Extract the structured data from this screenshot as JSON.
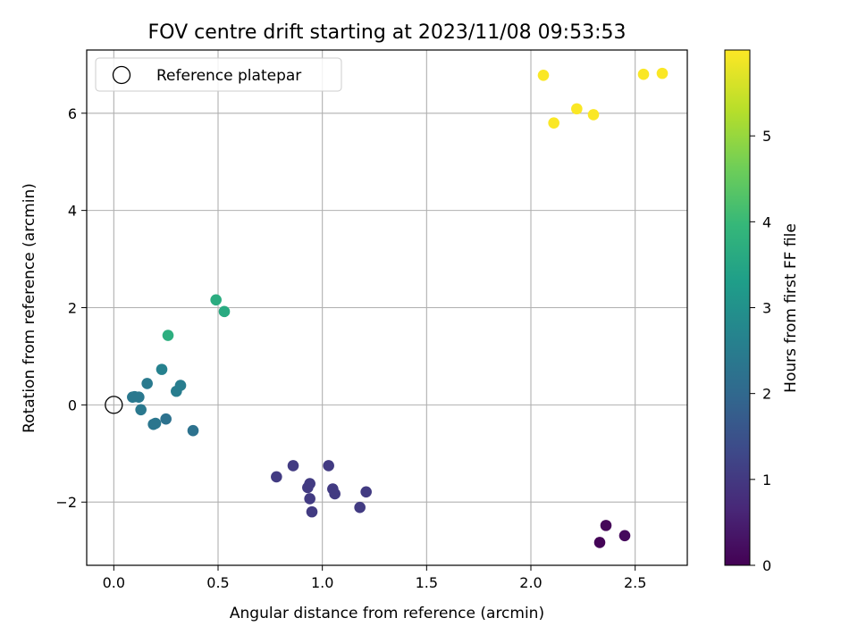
{
  "chart_data": {
    "type": "scatter",
    "title": "FOV centre drift starting at 2023/11/08 09:53:53",
    "xlabel": "Angular distance from reference (arcmin)",
    "ylabel": "Rotation from reference (arcmin)",
    "xlim": [
      -0.13,
      2.75
    ],
    "ylim": [
      -3.3,
      7.3
    ],
    "xticks": [
      0.0,
      0.5,
      1.0,
      1.5,
      2.0,
      2.5
    ],
    "xtick_labels": [
      "0.0",
      "0.5",
      "1.0",
      "1.5",
      "2.0",
      "2.5"
    ],
    "yticks": [
      -2,
      0,
      2,
      4,
      6
    ],
    "ytick_labels": [
      "−2",
      "0",
      "2",
      "4",
      "6"
    ],
    "grid": true,
    "legend": {
      "position": "top-left",
      "entries": [
        "Reference platepar"
      ]
    },
    "reference_point": {
      "x": 0.0,
      "y": 0.0,
      "label": "Reference platepar"
    },
    "colorbar": {
      "label": "Hours from first FF file",
      "range": [
        0,
        6
      ],
      "ticks": [
        0,
        1,
        2,
        3,
        4,
        5
      ],
      "tick_labels": [
        "0",
        "1",
        "2",
        "3",
        "4",
        "5"
      ],
      "colormap": "viridis",
      "colors": [
        "#440154",
        "#482878",
        "#3e4989",
        "#31688e",
        "#26828e",
        "#1f9e89",
        "#35b779",
        "#6ece58",
        "#b5de2b",
        "#fde725"
      ]
    },
    "series": [
      {
        "points": [
          {
            "x": 2.33,
            "y": -2.83,
            "c": 0.05
          },
          {
            "x": 2.36,
            "y": -2.48,
            "c": 0.1
          },
          {
            "x": 2.45,
            "y": -2.69,
            "c": 0.15
          },
          {
            "x": 0.78,
            "y": -1.48,
            "c": 1.05
          },
          {
            "x": 0.86,
            "y": -1.25,
            "c": 1.05
          },
          {
            "x": 0.93,
            "y": -1.7,
            "c": 1.05
          },
          {
            "x": 0.94,
            "y": -1.62,
            "c": 1.05
          },
          {
            "x": 0.94,
            "y": -1.93,
            "c": 1.05
          },
          {
            "x": 0.95,
            "y": -2.2,
            "c": 1.05
          },
          {
            "x": 1.03,
            "y": -1.25,
            "c": 1.05
          },
          {
            "x": 1.05,
            "y": -1.73,
            "c": 1.05
          },
          {
            "x": 1.06,
            "y": -1.83,
            "c": 1.05
          },
          {
            "x": 1.18,
            "y": -2.11,
            "c": 1.05
          },
          {
            "x": 1.21,
            "y": -1.79,
            "c": 1.05
          },
          {
            "x": 0.38,
            "y": -0.53,
            "c": 2.25
          },
          {
            "x": 0.25,
            "y": -0.29,
            "c": 2.25
          },
          {
            "x": 0.19,
            "y": -0.4,
            "c": 2.35
          },
          {
            "x": 0.2,
            "y": -0.38,
            "c": 2.35
          },
          {
            "x": 0.13,
            "y": -0.1,
            "c": 2.4
          },
          {
            "x": 0.09,
            "y": 0.16,
            "c": 2.4
          },
          {
            "x": 0.12,
            "y": 0.16,
            "c": 2.4
          },
          {
            "x": 0.1,
            "y": 0.17,
            "c": 2.4
          },
          {
            "x": 0.16,
            "y": 0.44,
            "c": 2.45
          },
          {
            "x": 0.3,
            "y": 0.28,
            "c": 2.55
          },
          {
            "x": 0.32,
            "y": 0.4,
            "c": 2.55
          },
          {
            "x": 0.23,
            "y": 0.73,
            "c": 2.65
          },
          {
            "x": 0.26,
            "y": 1.43,
            "c": 3.75
          },
          {
            "x": 0.49,
            "y": 2.16,
            "c": 3.7
          },
          {
            "x": 0.53,
            "y": 1.92,
            "c": 3.65
          },
          {
            "x": 2.06,
            "y": 6.78,
            "c": 5.97
          },
          {
            "x": 2.11,
            "y": 5.8,
            "c": 5.97
          },
          {
            "x": 2.22,
            "y": 6.09,
            "c": 5.97
          },
          {
            "x": 2.3,
            "y": 5.97,
            "c": 5.97
          },
          {
            "x": 2.54,
            "y": 6.8,
            "c": 5.97
          },
          {
            "x": 2.63,
            "y": 6.82,
            "c": 5.97
          }
        ]
      }
    ]
  }
}
